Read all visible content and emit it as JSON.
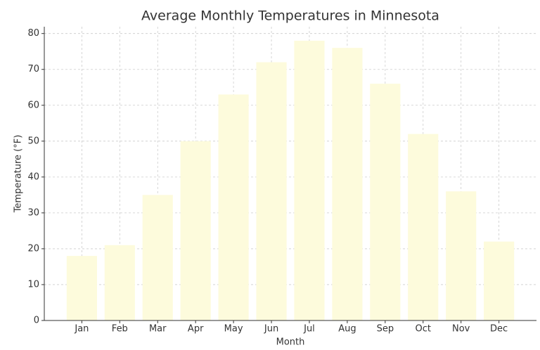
{
  "chart_data": {
    "type": "bar",
    "title": "Average Monthly Temperatures in Minnesota",
    "x_label": "Month",
    "y_label": "Temperature (°F)",
    "categories": [
      "Jan",
      "Feb",
      "Mar",
      "Apr",
      "May",
      "Jun",
      "Jul",
      "Aug",
      "Sep",
      "Oct",
      "Nov",
      "Dec"
    ],
    "values": [
      18,
      21,
      35,
      50,
      63,
      72,
      78,
      76,
      66,
      52,
      36,
      22
    ],
    "color": "#fdfbdc",
    "ylim": [
      0,
      81.9
    ],
    "yticks": [
      0,
      10,
      20,
      30,
      40,
      50,
      60,
      70,
      80
    ],
    "grid": true
  }
}
